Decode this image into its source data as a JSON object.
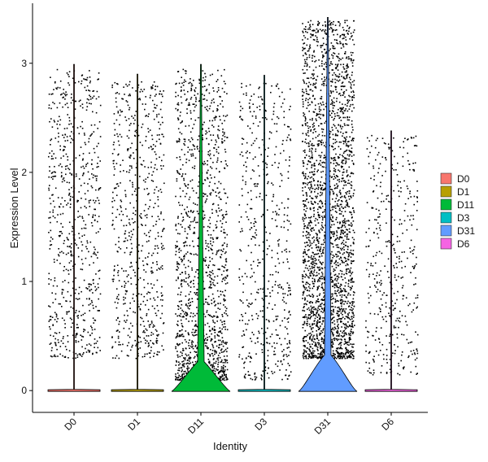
{
  "chart_data": {
    "type": "violin",
    "title": "",
    "xlabel": "Identity",
    "ylabel": "Expression Level",
    "ylim": [
      -0.2,
      3.55
    ],
    "yticks": [
      0,
      1,
      2,
      3
    ],
    "categories": [
      "D0",
      "D1",
      "D11",
      "D3",
      "D31",
      "D6"
    ],
    "colors": [
      "#F8766D",
      "#B79F00",
      "#00BA38",
      "#00BFC4",
      "#619CFF",
      "#F564E3"
    ],
    "legend": {
      "position": "right",
      "entries": [
        "D0",
        "D1",
        "D11",
        "D3",
        "D31",
        "D6"
      ]
    },
    "series": [
      {
        "name": "D0",
        "max": 2.99,
        "nonzero_range": [
          0.3,
          2.95
        ],
        "zero_fraction": 0.85,
        "points": 700
      },
      {
        "name": "D1",
        "max": 2.9,
        "nonzero_range": [
          0.3,
          2.85
        ],
        "zero_fraction": 0.86,
        "points": 640
      },
      {
        "name": "D11",
        "max": 2.99,
        "nonzero_range": [
          0.1,
          2.95
        ],
        "zero_fraction": 0.7,
        "points": 1400
      },
      {
        "name": "D3",
        "max": 2.89,
        "nonzero_range": [
          0.1,
          2.85
        ],
        "zero_fraction": 0.88,
        "points": 520
      },
      {
        "name": "D31",
        "max": 3.42,
        "nonzero_range": [
          0.3,
          3.4
        ],
        "zero_fraction": 0.62,
        "points": 2600
      },
      {
        "name": "D6",
        "max": 2.38,
        "nonzero_range": [
          0.15,
          2.35
        ],
        "zero_fraction": 0.88,
        "points": 420
      }
    ],
    "grid": false
  }
}
